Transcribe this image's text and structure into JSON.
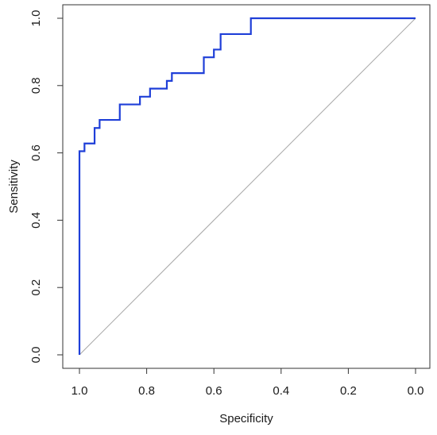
{
  "chart_data": {
    "type": "line",
    "title": "",
    "xlabel": "Specificity",
    "ylabel": "Sensitivity",
    "x_reversed": true,
    "xlim": [
      1.0,
      0.0
    ],
    "ylim": [
      0.0,
      1.0
    ],
    "grid": false,
    "legend": "none",
    "x_ticks": [
      1.0,
      0.8,
      0.6,
      0.4,
      0.2,
      0.0
    ],
    "x_tick_labels": [
      "1.0",
      "0.8",
      "0.6",
      "0.4",
      "0.2",
      "0.0"
    ],
    "y_ticks": [
      0.0,
      0.2,
      0.4,
      0.6,
      0.8,
      1.0
    ],
    "y_tick_labels": [
      "0.0",
      "0.2",
      "0.4",
      "0.6",
      "0.8",
      "1.0"
    ],
    "reference_line": {
      "from": [
        1.0,
        0.0
      ],
      "to": [
        0.0,
        1.0
      ],
      "color": "#a6a6a6"
    },
    "series": [
      {
        "color": "#1f3fd8",
        "points": [
          [
            1.0,
            0.0
          ],
          [
            1.0,
            0.605
          ],
          [
            0.985,
            0.605
          ],
          [
            0.985,
            0.628
          ],
          [
            0.955,
            0.628
          ],
          [
            0.955,
            0.674
          ],
          [
            0.94,
            0.674
          ],
          [
            0.94,
            0.698
          ],
          [
            0.88,
            0.698
          ],
          [
            0.88,
            0.744
          ],
          [
            0.82,
            0.744
          ],
          [
            0.82,
            0.767
          ],
          [
            0.79,
            0.767
          ],
          [
            0.79,
            0.791
          ],
          [
            0.74,
            0.791
          ],
          [
            0.74,
            0.814
          ],
          [
            0.725,
            0.814
          ],
          [
            0.725,
            0.837
          ],
          [
            0.63,
            0.837
          ],
          [
            0.63,
            0.884
          ],
          [
            0.6,
            0.884
          ],
          [
            0.6,
            0.907
          ],
          [
            0.58,
            0.907
          ],
          [
            0.58,
            0.953
          ],
          [
            0.49,
            0.953
          ],
          [
            0.49,
            1.0
          ],
          [
            0.0,
            1.0
          ]
        ]
      }
    ]
  }
}
